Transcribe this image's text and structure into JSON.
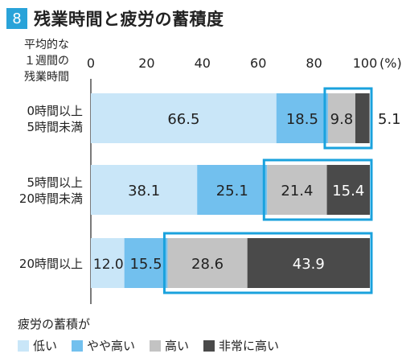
{
  "title": {
    "badge": "8",
    "text": "残業時間と疲労の蓄積度"
  },
  "chart_data": {
    "type": "bar",
    "orientation": "horizontal-stacked-100",
    "category_header": [
      "平均的な",
      "１週間の",
      "残業時間"
    ],
    "axis": {
      "ticks": [
        "0",
        "20",
        "40",
        "60",
        "80",
        "100"
      ],
      "unit": "(%)",
      "range": [
        0,
        100
      ]
    },
    "categories": [
      [
        "0時間以上",
        "5時間未満"
      ],
      [
        "5時間以上",
        "20時間未満"
      ],
      [
        "20時間以上"
      ]
    ],
    "series": [
      {
        "name": "低い",
        "color": "#c9e6f8",
        "values": [
          66.5,
          38.1,
          12.0
        ],
        "labels": [
          "66.5",
          "38.1",
          "12.0"
        ]
      },
      {
        "name": "やや高い",
        "color": "#72c0ee",
        "values": [
          18.5,
          25.1,
          15.5
        ],
        "labels": [
          "18.5",
          "25.1",
          "15.5"
        ]
      },
      {
        "name": "高い",
        "color": "#c3c3c3",
        "values": [
          9.8,
          21.4,
          28.6
        ],
        "labels": [
          "9.8",
          "21.4",
          "28.6"
        ]
      },
      {
        "name": "非常に高い",
        "color": "#4a4a4a",
        "values": [
          5.1,
          15.4,
          43.9
        ],
        "labels": [
          "5.1",
          "15.4",
          "43.9"
        ]
      }
    ],
    "highlight_color": "#1aa2dd",
    "legend": {
      "title": "疲労の蓄積が",
      "placement": "bottom"
    }
  }
}
